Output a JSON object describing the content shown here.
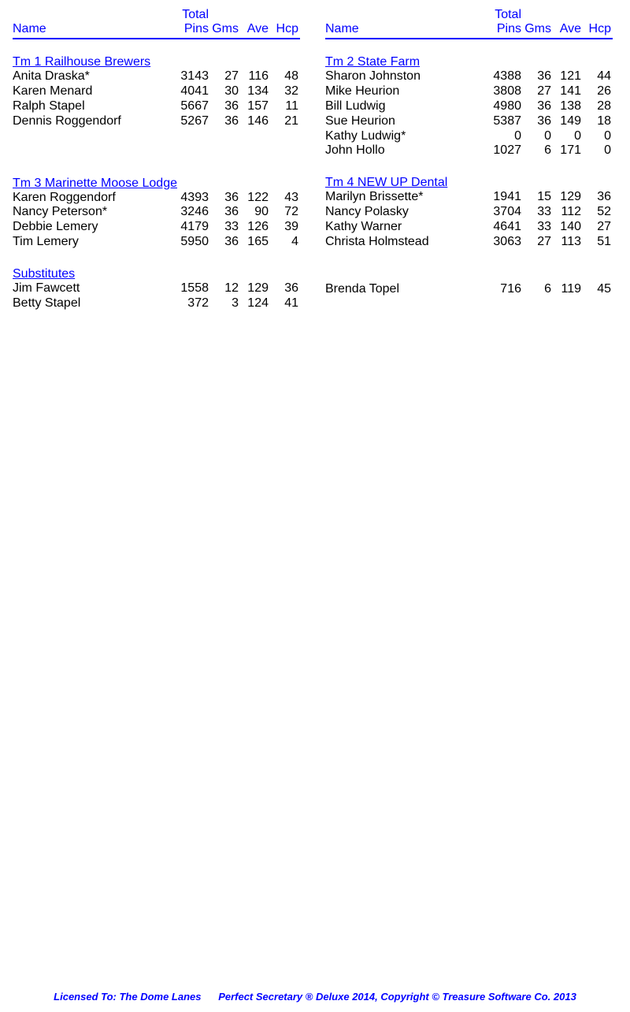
{
  "colors": {
    "link": "#0000ff",
    "text": "#000000",
    "rule": "#0000ff",
    "background": "#ffffff"
  },
  "fonts": {
    "family": "Arial",
    "body_size_pt": 12,
    "footer_size_pt": 10
  },
  "headers": {
    "name": "Name",
    "total": "Total",
    "pins": "Pins",
    "gms": "Gms",
    "ave": "Ave",
    "hcp": "Hcp"
  },
  "left": {
    "team1": {
      "title": "Tm 1 Railhouse Brewers",
      "players": [
        {
          "name": "Anita Draska*",
          "pins": "3143",
          "gms": "27",
          "ave": "116",
          "hcp": "48"
        },
        {
          "name": "Karen Menard",
          "pins": "4041",
          "gms": "30",
          "ave": "134",
          "hcp": "32"
        },
        {
          "name": "Ralph Stapel",
          "pins": "5667",
          "gms": "36",
          "ave": "157",
          "hcp": "11"
        },
        {
          "name": "Dennis Roggendorf",
          "pins": "5267",
          "gms": "36",
          "ave": "146",
          "hcp": "21"
        }
      ]
    },
    "team3": {
      "title": "Tm 3 Marinette Moose Lodge",
      "players": [
        {
          "name": "Karen Roggendorf",
          "pins": "4393",
          "gms": "36",
          "ave": "122",
          "hcp": "43"
        },
        {
          "name": "Nancy Peterson*",
          "pins": "3246",
          "gms": "36",
          "ave": "90",
          "hcp": "72"
        },
        {
          "name": "Debbie Lemery",
          "pins": "4179",
          "gms": "33",
          "ave": "126",
          "hcp": "39"
        },
        {
          "name": "Tim Lemery",
          "pins": "5950",
          "gms": "36",
          "ave": "165",
          "hcp": "4"
        }
      ]
    },
    "subs": {
      "title": "Substitutes",
      "players": [
        {
          "name": "Jim Fawcett",
          "pins": "1558",
          "gms": "12",
          "ave": "129",
          "hcp": "36"
        },
        {
          "name": "Betty Stapel",
          "pins": "372",
          "gms": "3",
          "ave": "124",
          "hcp": "41"
        }
      ]
    }
  },
  "right": {
    "team2": {
      "title": "Tm 2 State Farm",
      "players": [
        {
          "name": "Sharon Johnston",
          "pins": "4388",
          "gms": "36",
          "ave": "121",
          "hcp": "44"
        },
        {
          "name": "Mike Heurion",
          "pins": "3808",
          "gms": "27",
          "ave": "141",
          "hcp": "26"
        },
        {
          "name": "Bill Ludwig",
          "pins": "4980",
          "gms": "36",
          "ave": "138",
          "hcp": "28"
        },
        {
          "name": "Sue Heurion",
          "pins": "5387",
          "gms": "36",
          "ave": "149",
          "hcp": "18"
        },
        {
          "name": "Kathy Ludwig*",
          "pins": "0",
          "gms": "0",
          "ave": "0",
          "hcp": "0"
        },
        {
          "name": "John Hollo",
          "pins": "1027",
          "gms": "6",
          "ave": "171",
          "hcp": "0"
        }
      ]
    },
    "team4": {
      "title": "Tm 4 NEW UP Dental",
      "players": [
        {
          "name": "Marilyn Brissette*",
          "pins": "1941",
          "gms": "15",
          "ave": "129",
          "hcp": "36"
        },
        {
          "name": "Nancy Polasky",
          "pins": "3704",
          "gms": "33",
          "ave": "112",
          "hcp": "52"
        },
        {
          "name": "Kathy Warner",
          "pins": "4641",
          "gms": "33",
          "ave": "140",
          "hcp": "27"
        },
        {
          "name": "Christa Holmstead",
          "pins": "3063",
          "gms": "27",
          "ave": "113",
          "hcp": "51"
        }
      ]
    },
    "subs": {
      "players": [
        {
          "name": "Brenda Topel",
          "pins": "716",
          "gms": "6",
          "ave": "119",
          "hcp": "45"
        }
      ]
    }
  },
  "footer": {
    "left": "Licensed To: The Dome Lanes",
    "right": "Perfect Secretary ® Deluxe  2014, Copyright © Treasure Software Co. 2013"
  }
}
